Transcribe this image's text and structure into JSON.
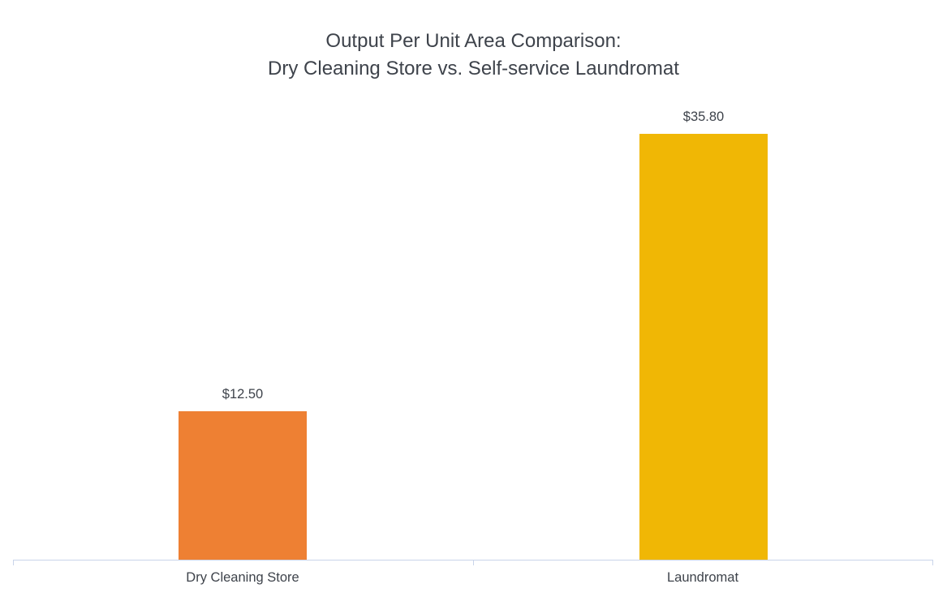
{
  "chart": {
    "title_line1": "Output Per Unit Area Comparison:",
    "title_line2": "Dry Cleaning Store vs. Self-service Laundromat"
  },
  "chart_data": {
    "type": "bar",
    "title": "Output Per Unit Area Comparison: Dry Cleaning Store vs. Self-service Laundromat",
    "categories": [
      "Dry Cleaning Store",
      "Laundromat"
    ],
    "values": [
      12.5,
      35.8
    ],
    "data_labels": [
      "$12.50",
      "$35.80"
    ],
    "bar_colors": [
      "#ee8033",
      "#f0b705"
    ],
    "xlabel": "",
    "ylabel": "",
    "ylim": [
      0,
      40
    ],
    "grid": false,
    "legend": false,
    "y_axis_visible": false,
    "axis_line_color": "#c9d4ea",
    "text_color": "#3e434b",
    "background_color": "#ffffff"
  }
}
